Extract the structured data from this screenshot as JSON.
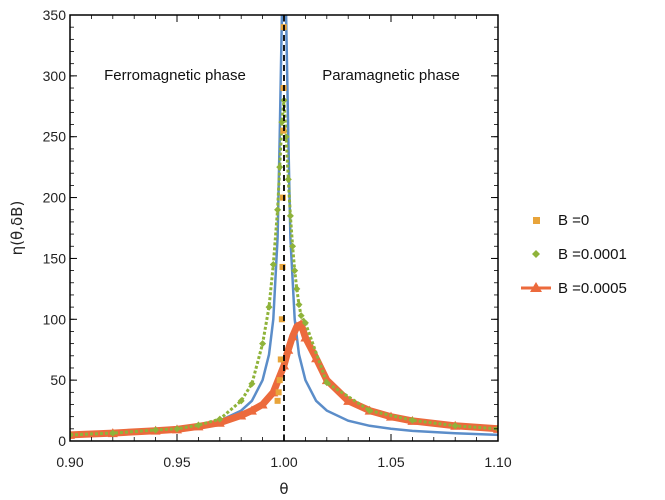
{
  "chart_data": {
    "type": "scatter",
    "xlabel": "θ",
    "ylabel": "η(θ,δB)",
    "xlim": [
      0.9,
      1.1
    ],
    "ylim": [
      0,
      350
    ],
    "xticks": [
      "0.90",
      "0.95",
      "1.00",
      "1.05",
      "1.10"
    ],
    "yticks": [
      "0",
      "50",
      "100",
      "150",
      "200",
      "250",
      "300",
      "350"
    ],
    "grid": false,
    "frame": true,
    "legend_position": "right",
    "annotations": [
      "Ferromagnetic phase",
      "Paramagnetic phase"
    ],
    "vertical_reference_line": {
      "x": 1.0,
      "style": "dashed"
    },
    "colors": {
      "reference_curve": "#5b8dc9",
      "b0": "#e8a43a",
      "b0001": "#8fb33a",
      "b0005": "#ec6a3c"
    },
    "series": [
      {
        "name": "B =0",
        "marker": "square",
        "color": "#e8a43a",
        "x": [
          0.997,
          0.9975,
          0.998,
          0.9985,
          0.999,
          0.9993,
          0.9995,
          0.9997,
          0.9998,
          0.9999
        ],
        "y": [
          33,
          40,
          50,
          67,
          100,
          143,
          200,
          255,
          290,
          340
        ]
      },
      {
        "name": "B =0.0001",
        "marker": "diamond",
        "color": "#8fb33a",
        "x": [
          0.9,
          0.92,
          0.94,
          0.95,
          0.96,
          0.97,
          0.98,
          0.985,
          0.99,
          0.993,
          0.995,
          0.997,
          0.998,
          0.999,
          1.0,
          1.001,
          1.002,
          1.003,
          1.004,
          1.005,
          1.006,
          1.007,
          1.008,
          1.01,
          1.02,
          1.04,
          1.06,
          1.08,
          1.1
        ],
        "y": [
          5,
          6.5,
          9,
          10,
          13,
          18,
          33,
          47,
          80,
          110,
          145,
          190,
          225,
          262,
          280,
          250,
          215,
          185,
          160,
          140,
          125,
          112,
          103,
          97,
          48,
          25,
          17,
          12.5,
          10
        ]
      },
      {
        "name": "B =0.0005",
        "marker": "triangle",
        "color": "#ec6a3c",
        "x": [
          0.9,
          0.92,
          0.94,
          0.95,
          0.96,
          0.97,
          0.98,
          0.985,
          0.99,
          0.995,
          1.0,
          1.002,
          1.004,
          1.006,
          1.008,
          1.01,
          1.015,
          1.02,
          1.03,
          1.04,
          1.05,
          1.06,
          1.08,
          1.1
        ],
        "y": [
          5,
          6.5,
          8.5,
          9.5,
          12,
          15,
          21,
          25,
          30,
          40,
          62,
          75,
          86,
          94,
          96,
          85,
          68,
          50,
          33,
          25,
          20,
          16.5,
          12.5,
          10
        ]
      }
    ],
    "reference_curve": {
      "x": [
        0.9,
        0.92,
        0.94,
        0.95,
        0.96,
        0.97,
        0.98,
        0.985,
        0.99,
        0.993,
        0.995,
        0.997,
        0.998,
        0.999,
        0.9995,
        1.0005,
        1.001,
        1.002,
        1.003,
        1.005,
        1.007,
        1.01,
        1.015,
        1.02,
        1.03,
        1.04,
        1.05,
        1.06,
        1.08,
        1.1
      ],
      "y": [
        5,
        6.3,
        8.3,
        10,
        12.5,
        16.7,
        25,
        33,
        50,
        71,
        100,
        167,
        250,
        350,
        350,
        350,
        350,
        250,
        167,
        100,
        71,
        50,
        33,
        25,
        16.7,
        12.5,
        10,
        8.3,
        6.3,
        5
      ]
    }
  }
}
